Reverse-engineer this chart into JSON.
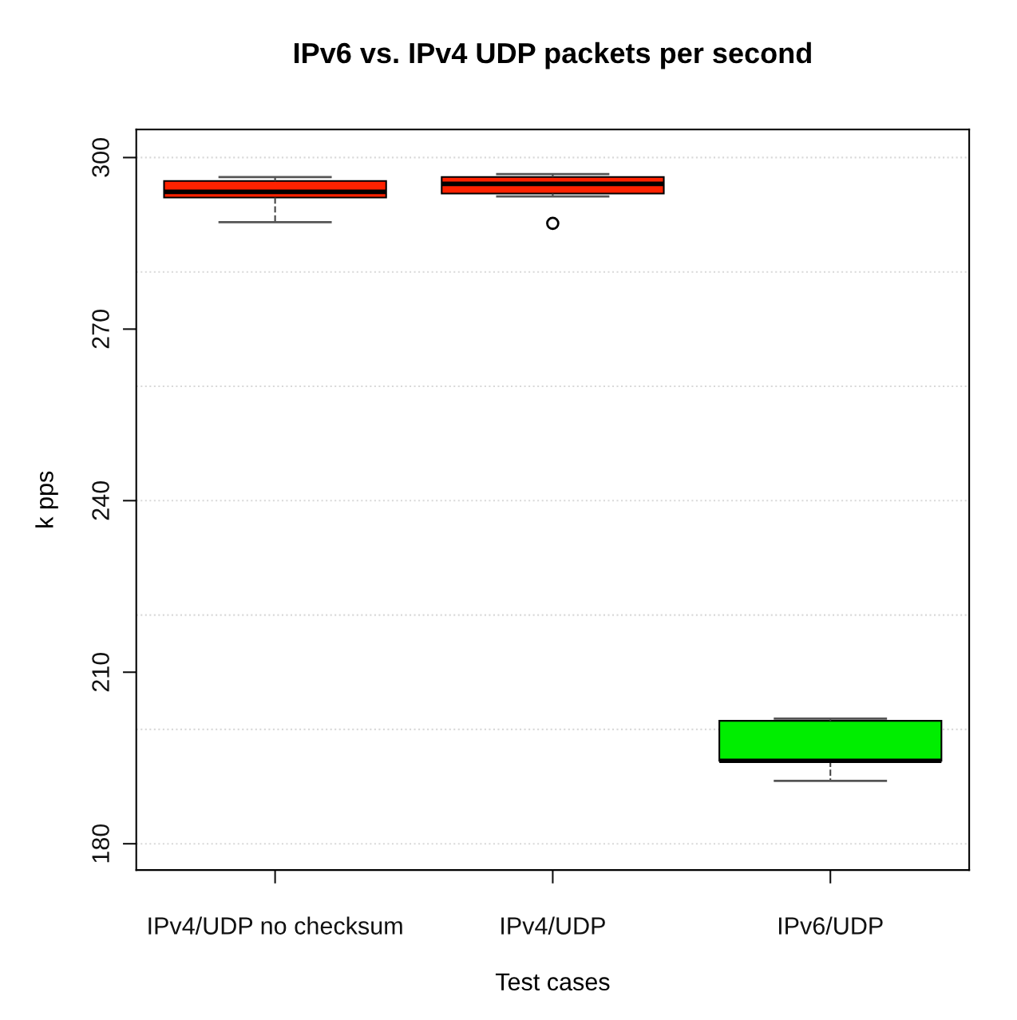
{
  "chart_data": {
    "type": "box",
    "title": "IPv6 vs. IPv4 UDP packets per second",
    "xlabel": "Test cases",
    "ylabel": "k pps",
    "categories": [
      "IPv4/UDP no checksum",
      "IPv4/UDP",
      "IPv6/UDP"
    ],
    "colors": [
      "#ff2200",
      "#ff2200",
      "#00ee00"
    ],
    "boxes": [
      {
        "low": 288.7,
        "q1": 293.0,
        "median": 294.0,
        "q3": 295.9,
        "high": 296.6
      },
      {
        "low": 293.2,
        "q1": 293.7,
        "median": 295.4,
        "q3": 296.6,
        "high": 297.1,
        "outliers": [
          288.5
        ]
      },
      {
        "low": 191.0,
        "q1": 194.5,
        "median": 194.5,
        "q3": 201.5,
        "high": 201.9
      }
    ],
    "ylim": [
      175.4,
      304.9
    ],
    "yticks": [
      180,
      210,
      240,
      270,
      300
    ],
    "ref_lines": [
      {
        "axis": "y",
        "value": 180,
        "color": "#d9d9d9",
        "line_style": "dotted"
      },
      {
        "axis": "y",
        "value": 200,
        "color": "#d9d9d9",
        "line_style": "dotted"
      },
      {
        "axis": "y",
        "value": 220,
        "color": "#d9d9d9",
        "line_style": "dotted"
      },
      {
        "axis": "y",
        "value": 240,
        "color": "#d9d9d9",
        "line_style": "dotted"
      },
      {
        "axis": "y",
        "value": 260,
        "color": "#d9d9d9",
        "line_style": "dotted"
      },
      {
        "axis": "y",
        "value": 280,
        "color": "#d9d9d9",
        "line_style": "dotted"
      },
      {
        "axis": "y",
        "value": 300,
        "color": "#d9d9d9",
        "line_style": "dotted"
      }
    ],
    "grid": false,
    "legend": false
  }
}
